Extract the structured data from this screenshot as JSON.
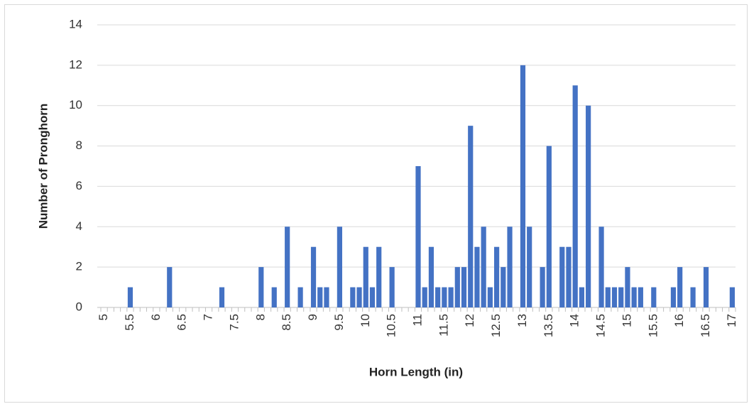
{
  "chart_data": {
    "type": "bar",
    "x_label": "Horn Length (in)",
    "y_label": "Number of Pronghorn",
    "color": "#4472c4",
    "categories": [
      "5",
      null,
      null,
      null,
      "5.5",
      null,
      null,
      null,
      "6",
      null,
      null,
      null,
      "6.5",
      null,
      null,
      null,
      "7",
      null,
      null,
      null,
      "7.5",
      null,
      null,
      null,
      "8",
      null,
      null,
      null,
      "8.5",
      null,
      null,
      null,
      "9",
      null,
      null,
      null,
      "9.5",
      null,
      null,
      null,
      "10",
      null,
      null,
      null,
      "10.5",
      null,
      null,
      null,
      "11",
      null,
      null,
      null,
      "11.5",
      null,
      null,
      null,
      "12",
      null,
      null,
      null,
      "12.5",
      null,
      null,
      null,
      "13",
      null,
      null,
      null,
      "13.5",
      null,
      null,
      null,
      "14",
      null,
      null,
      null,
      "14.5",
      null,
      null,
      null,
      "15",
      null,
      null,
      null,
      "15.5",
      null,
      null,
      null,
      "16",
      null,
      null,
      null,
      "16.5",
      null,
      null,
      null,
      "17"
    ],
    "values": [
      0,
      0,
      0,
      0,
      1,
      0,
      0,
      0,
      0,
      0,
      2,
      0,
      0,
      0,
      0,
      0,
      0,
      0,
      1,
      0,
      0,
      0,
      0,
      0,
      2,
      0,
      1,
      0,
      4,
      0,
      1,
      0,
      3,
      1,
      1,
      0,
      4,
      0,
      1,
      1,
      3,
      1,
      3,
      0,
      2,
      0,
      0,
      0,
      7,
      1,
      3,
      1,
      1,
      1,
      2,
      2,
      9,
      3,
      4,
      1,
      3,
      2,
      4,
      0,
      12,
      4,
      0,
      2,
      8,
      0,
      3,
      3,
      11,
      1,
      10,
      0,
      4,
      1,
      1,
      1,
      2,
      1,
      1,
      0,
      1,
      0,
      0,
      1,
      2,
      0,
      1,
      0,
      2,
      0,
      0,
      0,
      1
    ],
    "ylim": [
      0,
      14
    ],
    "yticks": [
      0,
      2,
      4,
      6,
      8,
      10,
      12,
      14
    ],
    "grid": true
  }
}
